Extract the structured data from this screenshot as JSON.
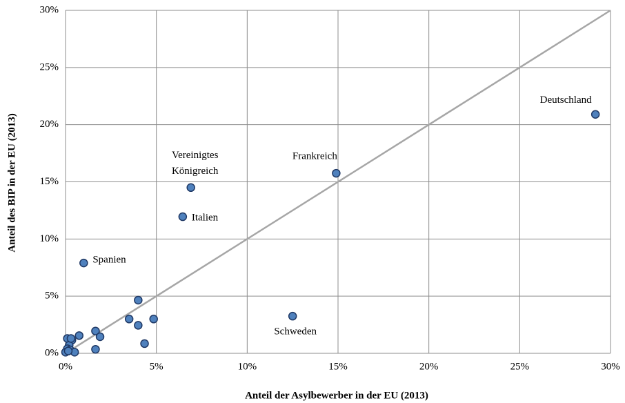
{
  "chart_data": {
    "type": "scatter",
    "xlabel": "Anteil der Asylbewerber in der EU (2013)",
    "ylabel": "Anteil des BIP in der EU (2013)",
    "x": [
      29.17,
      14.9,
      6.9,
      6.45,
      1.0,
      12.5,
      4.0,
      3.5,
      4.0,
      4.85,
      4.35,
      1.65,
      1.9,
      1.65,
      0.75,
      0.35,
      0.1,
      0.2,
      0.1,
      0.25,
      0.5,
      0.0,
      0.3,
      0.15
    ],
    "values": [
      20.9,
      15.75,
      14.5,
      11.95,
      7.9,
      3.25,
      4.65,
      3.0,
      2.45,
      3.0,
      0.85,
      1.95,
      1.45,
      0.35,
      1.55,
      1.15,
      1.3,
      0.7,
      0.4,
      0.3,
      0.1,
      0.1,
      1.3,
      0.2
    ],
    "labels": [
      "Deutschland",
      "Frankreich",
      "Vereinigtes Königreich",
      "Italien",
      "Spanien",
      "Schweden",
      null,
      null,
      null,
      null,
      null,
      null,
      null,
      null,
      null,
      null,
      null,
      null,
      null,
      null,
      null,
      null,
      null,
      null
    ],
    "color": "#4f81bd",
    "reference_line": {
      "x": [
        0,
        30
      ],
      "y": [
        0,
        30
      ],
      "color": "#a6a6a6"
    },
    "xlim": [
      0,
      30
    ],
    "ylim": [
      0,
      30
    ],
    "xticks": [
      {
        "value": 0,
        "label": "0%"
      },
      {
        "value": 5,
        "label": "5%"
      },
      {
        "value": 10,
        "label": "10%"
      },
      {
        "value": 15,
        "label": "15%"
      },
      {
        "value": 20,
        "label": "20%"
      },
      {
        "value": 25,
        "label": "25%"
      },
      {
        "value": 30,
        "label": "30%"
      }
    ],
    "yticks": [
      {
        "value": 0,
        "label": "0%"
      },
      {
        "value": 5,
        "label": "5%"
      },
      {
        "value": 10,
        "label": "10%"
      },
      {
        "value": 15,
        "label": "15%"
      },
      {
        "value": 20,
        "label": "20%"
      },
      {
        "value": 25,
        "label": "25%"
      },
      {
        "value": 30,
        "label": "30%"
      }
    ],
    "grid": true
  }
}
